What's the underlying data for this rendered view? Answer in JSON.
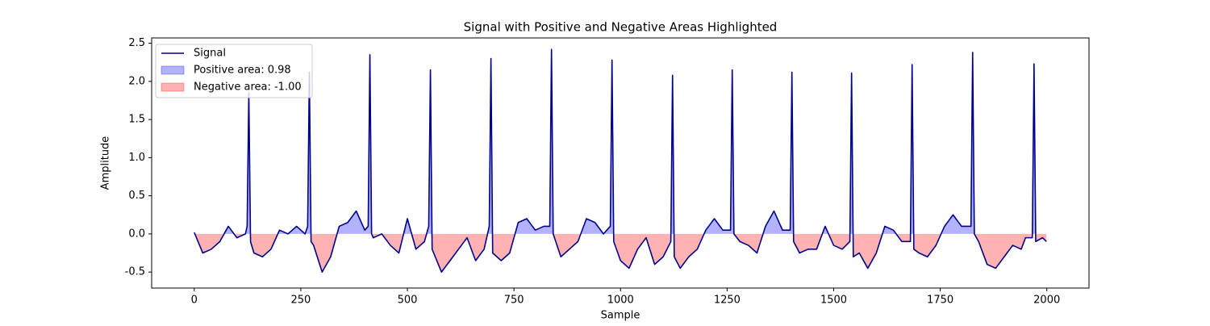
{
  "chart_data": {
    "type": "line",
    "title": "Signal with Positive and Negative Areas Highlighted",
    "x_label": "Sample",
    "y_label": "Amplitude",
    "x": [
      0,
      20,
      40,
      60,
      80,
      100,
      120,
      124,
      128,
      132,
      140,
      160,
      180,
      200,
      220,
      240,
      260,
      266,
      270,
      274,
      280,
      300,
      320,
      340,
      360,
      380,
      400,
      408,
      412,
      416,
      420,
      440,
      460,
      480,
      500,
      520,
      540,
      550,
      554,
      558,
      580,
      600,
      620,
      640,
      660,
      680,
      692,
      696,
      700,
      720,
      740,
      760,
      780,
      800,
      820,
      834,
      838,
      842,
      860,
      880,
      900,
      920,
      940,
      960,
      976,
      980,
      984,
      1000,
      1020,
      1040,
      1060,
      1080,
      1100,
      1118,
      1122,
      1126,
      1140,
      1160,
      1180,
      1200,
      1220,
      1240,
      1258,
      1262,
      1266,
      1280,
      1300,
      1320,
      1340,
      1360,
      1380,
      1398,
      1402,
      1406,
      1420,
      1440,
      1460,
      1480,
      1500,
      1520,
      1538,
      1542,
      1546,
      1560,
      1580,
      1600,
      1620,
      1640,
      1660,
      1680,
      1684,
      1688,
      1700,
      1720,
      1740,
      1760,
      1780,
      1800,
      1822,
      1826,
      1830,
      1840,
      1860,
      1880,
      1900,
      1920,
      1940,
      1950,
      1966,
      1970,
      1974,
      1990,
      1999
    ],
    "series": [
      {
        "name": "Signal",
        "color": "#00008b",
        "values": [
          0.02,
          -0.25,
          -0.2,
          -0.1,
          0.1,
          -0.05,
          0.0,
          0.1,
          1.85,
          -0.1,
          -0.25,
          -0.3,
          -0.2,
          0.05,
          0.0,
          0.1,
          0.0,
          0.1,
          2.12,
          -0.1,
          -0.15,
          -0.5,
          -0.3,
          0.1,
          0.15,
          0.3,
          0.05,
          0.1,
          2.35,
          0.0,
          -0.05,
          0.0,
          -0.15,
          -0.25,
          0.2,
          -0.2,
          -0.1,
          0.1,
          2.15,
          -0.2,
          -0.5,
          -0.35,
          -0.2,
          -0.05,
          -0.35,
          -0.2,
          0.1,
          2.3,
          -0.25,
          -0.35,
          -0.25,
          0.15,
          0.2,
          0.05,
          0.1,
          0.1,
          2.42,
          0.0,
          -0.3,
          -0.2,
          -0.1,
          0.2,
          0.15,
          0.0,
          0.1,
          2.28,
          -0.1,
          -0.35,
          -0.45,
          -0.2,
          -0.05,
          -0.4,
          -0.3,
          -0.1,
          2.08,
          -0.3,
          -0.45,
          -0.3,
          -0.2,
          0.05,
          0.2,
          0.05,
          0.05,
          2.15,
          0.0,
          -0.1,
          -0.15,
          -0.25,
          0.1,
          0.3,
          0.05,
          0.05,
          2.12,
          -0.1,
          -0.25,
          -0.2,
          -0.2,
          0.1,
          -0.15,
          -0.2,
          -0.1,
          2.11,
          -0.3,
          -0.25,
          -0.45,
          -0.25,
          0.1,
          0.05,
          -0.1,
          -0.1,
          2.22,
          -0.2,
          -0.25,
          -0.3,
          -0.15,
          0.1,
          0.25,
          0.1,
          0.1,
          2.38,
          0.0,
          -0.1,
          -0.4,
          -0.45,
          -0.3,
          -0.15,
          -0.2,
          -0.05,
          -0.05,
          2.23,
          -0.1,
          -0.05,
          -0.1
        ]
      }
    ],
    "areas": [
      {
        "name": "Positive area: 0.98",
        "color": "#0000ff",
        "sign": "positive"
      },
      {
        "name": "Negative area: -1.00",
        "color": "#ff0000",
        "sign": "negative"
      }
    ],
    "xlim": [
      -99.95,
      2098.95
    ],
    "ylim": [
      -0.71,
      2.57
    ],
    "xticks": [
      0,
      250,
      500,
      750,
      1000,
      1250,
      1500,
      1750,
      2000
    ],
    "yticks": [
      -0.5,
      {
        "value": 0,
        "label": "0.0"
      },
      0.5,
      {
        "value": 1,
        "label": "1.0"
      },
      1.5,
      {
        "value": 2,
        "label": "2.0"
      },
      2.5
    ],
    "grid": false,
    "legend": "upper left"
  }
}
